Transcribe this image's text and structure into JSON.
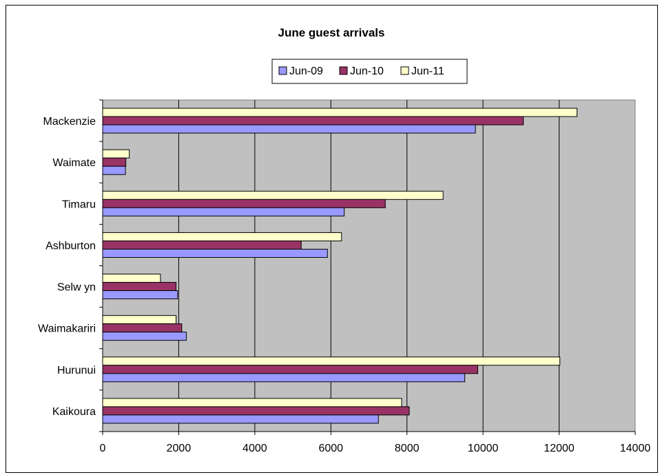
{
  "chart_data": {
    "type": "bar",
    "orientation": "horizontal",
    "title": "June guest arrivals",
    "xlabel": "",
    "ylabel": "",
    "categories": [
      "Kaikoura",
      "Hurunui",
      "Waimakariri",
      "Selw yn",
      "Ashburton",
      "Timaru",
      "Waimate",
      "Mackenzie"
    ],
    "series": [
      {
        "name": "Jun-09",
        "color": "#9999ff",
        "values": [
          7250,
          9520,
          2200,
          1970,
          5910,
          6350,
          600,
          9800
        ]
      },
      {
        "name": "Jun-10",
        "color": "#993366",
        "values": [
          8060,
          9860,
          2080,
          1930,
          5220,
          7430,
          610,
          11060
        ]
      },
      {
        "name": "Jun-11",
        "color": "#ffffcc",
        "values": [
          7860,
          12020,
          1930,
          1520,
          6280,
          8950,
          700,
          12470
        ]
      }
    ],
    "xlim": [
      0,
      14000
    ],
    "xticks": [
      "0",
      "2000",
      "4000",
      "6000",
      "8000",
      "10000",
      "12000",
      "14000"
    ],
    "grid": "vertical",
    "legend": "top-center",
    "plot_background": "#c0c0c0"
  }
}
